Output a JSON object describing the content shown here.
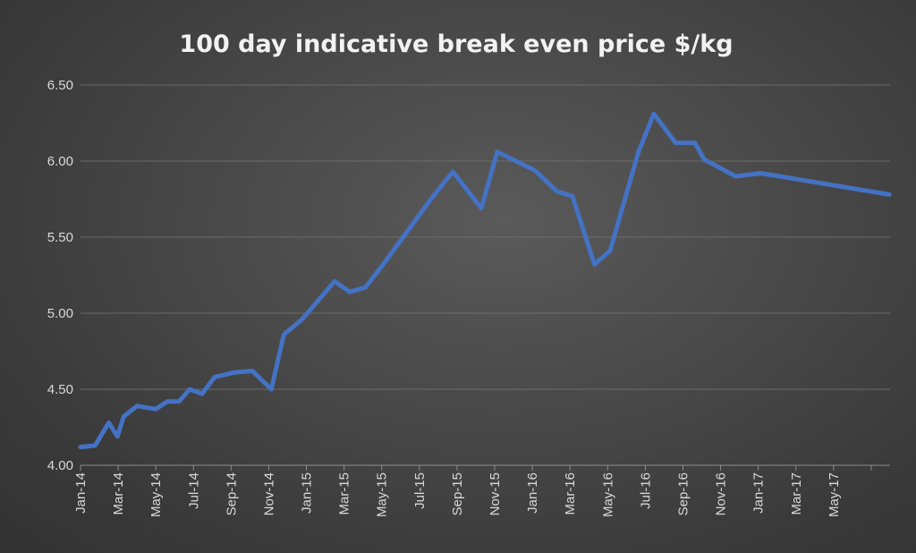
{
  "chart_data": {
    "type": "line",
    "title": "100 day indicative break even price $/kg",
    "xlabel": "",
    "ylabel": "",
    "ylim": [
      4.0,
      6.5
    ],
    "yticks": [
      "4.00",
      "4.50",
      "5.00",
      "5.50",
      "6.00",
      "6.50"
    ],
    "xtick_labels": [
      "Jan-14",
      "Mar-14",
      "May-14",
      "Jul-14",
      "Sep-14",
      "Nov-14",
      "Jan-15",
      "Mar-15",
      "May-15",
      "Jul-15",
      "Sep-15",
      "Nov-15",
      "Jan-16",
      "Mar-16",
      "May-16",
      "Jul-16",
      "Sep-16",
      "Nov-16",
      "Jan-17",
      "Mar-17",
      "May-17"
    ],
    "x_range": [
      "2014-01",
      "2017-07"
    ],
    "grid": "horizontal",
    "legend": "none",
    "colors": {
      "series": "#4472c4"
    },
    "series": [
      {
        "points": [
          [
            "2014-01-01",
            4.12
          ],
          [
            "2014-01-25",
            4.13
          ],
          [
            "2014-02-15",
            4.28
          ],
          [
            "2014-02-28",
            4.19
          ],
          [
            "2014-03-10",
            4.32
          ],
          [
            "2014-04-01",
            4.39
          ],
          [
            "2014-05-01",
            4.37
          ],
          [
            "2014-05-20",
            4.42
          ],
          [
            "2014-06-08",
            4.42
          ],
          [
            "2014-06-25",
            4.5
          ],
          [
            "2014-07-15",
            4.47
          ],
          [
            "2014-08-05",
            4.58
          ],
          [
            "2014-09-05",
            4.61
          ],
          [
            "2014-10-05",
            4.62
          ],
          [
            "2014-11-05",
            4.5
          ],
          [
            "2014-11-25",
            4.86
          ],
          [
            "2014-12-25",
            4.96
          ],
          [
            "2015-02-15",
            5.21
          ],
          [
            "2015-03-10",
            5.14
          ],
          [
            "2015-04-05",
            5.17
          ],
          [
            "2015-05-05",
            5.33
          ],
          [
            "2015-07-20",
            5.75
          ],
          [
            "2015-08-25",
            5.93
          ],
          [
            "2015-10-10",
            5.69
          ],
          [
            "2015-11-05",
            6.06
          ],
          [
            "2016-01-05",
            5.94
          ],
          [
            "2016-02-10",
            5.8
          ],
          [
            "2016-03-05",
            5.77
          ],
          [
            "2016-04-10",
            5.32
          ],
          [
            "2016-05-05",
            5.41
          ],
          [
            "2016-06-20",
            6.06
          ],
          [
            "2016-07-15",
            6.31
          ],
          [
            "2016-08-20",
            6.12
          ],
          [
            "2016-09-20",
            6.12
          ],
          [
            "2016-10-05",
            6.01
          ],
          [
            "2016-11-25",
            5.9
          ],
          [
            "2017-01-05",
            5.92
          ],
          [
            "2017-07-31",
            5.78
          ]
        ]
      }
    ]
  }
}
